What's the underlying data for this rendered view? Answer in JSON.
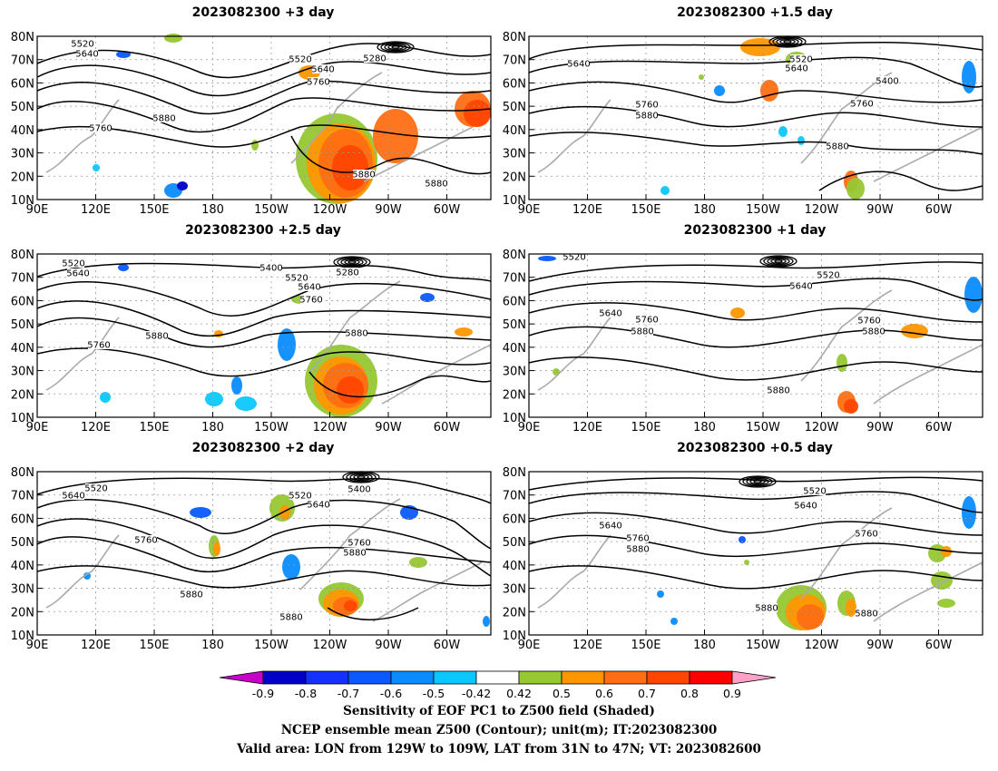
{
  "panels": [
    {
      "title": "2023082300  +3 day"
    },
    {
      "title": "2023082300  +1.5 day"
    },
    {
      "title": "2023082300  +2.5 day"
    },
    {
      "title": "2023082300  +1 day"
    },
    {
      "title": "2023082300  +2 day"
    },
    {
      "title": "2023082300  +0.5 day"
    }
  ],
  "axes": {
    "lat_labels": [
      "10N",
      "20N",
      "30N",
      "40N",
      "50N",
      "60N",
      "70N",
      "80N"
    ],
    "lon_labels": [
      "90E",
      "120E",
      "150E",
      "180",
      "150W",
      "120W",
      "90W",
      "60W"
    ]
  },
  "colorbar": {
    "tick_labels": [
      "-0.9",
      "-0.8",
      "-0.7",
      "-0.6",
      "-0.5",
      "-0.42",
      "0.42",
      "0.5",
      "0.6",
      "0.7",
      "0.8",
      "0.9"
    ],
    "colors": [
      "#0000c8",
      "#1432ff",
      "#0a5aff",
      "#0a8cff",
      "#0ac8ff",
      "#ffffff",
      "#96c832",
      "#ff9600",
      "#ff6e14",
      "#ff4600",
      "#ff0000"
    ],
    "low_arrow_color": "#c800c8",
    "high_arrow_color": "#ffa0c8"
  },
  "caption": {
    "line1": "Sensitivity of EOF PC1 to Z500 field (Shaded)",
    "line2": "NCEP ensemble mean Z500 (Contour); unit(m); IT:2023082300",
    "line3": "Valid area: LON from 129W to 109W, LAT from 31N to 47N; VT: 2023082600"
  },
  "contour_labels": [
    [
      "5520",
      "5640",
      "5520",
      "5640",
      "5280",
      "5760",
      "5880",
      "5760",
      "5880",
      "5880"
    ],
    [
      "5640",
      "5520",
      "5640",
      "5400",
      "5760",
      "5880",
      "5760",
      "5880"
    ],
    [
      "5520",
      "5640",
      "5400",
      "5520",
      "5280",
      "5640",
      "5760",
      "5760",
      "5880",
      "5880"
    ],
    [
      "5520",
      "5520",
      "5640",
      "5640",
      "5760",
      "5880",
      "5760",
      "5880",
      "5880"
    ],
    [
      "5640",
      "5520",
      "5520",
      "5400",
      "5640",
      "5760",
      "5760",
      "5880",
      "5880",
      "5880"
    ],
    [
      "5520",
      "5640",
      "5640",
      "5760",
      "5880",
      "5760",
      "5880",
      "5880"
    ]
  ]
}
